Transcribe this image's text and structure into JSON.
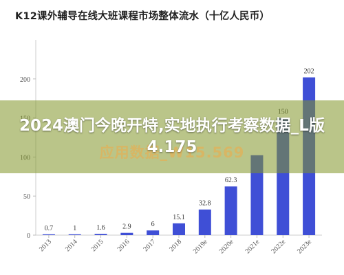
{
  "chart_data": {
    "type": "bar",
    "title": "K12课外辅导在线大班课程市场整体流水（十亿人民币）",
    "categories": [
      "2013",
      "2014",
      "2015",
      "2016",
      "2017",
      "2018",
      "2019e",
      "2020e",
      "2021e",
      "2022e",
      "2023e"
    ],
    "values": [
      0.7,
      1,
      1.6,
      2.9,
      6,
      15.1,
      32.8,
      62.3,
      102.3,
      150,
      202
    ],
    "value_labels": [
      "0.7",
      "1",
      "1.6",
      "2.9",
      "6",
      "15.1",
      "32.8",
      "62.3",
      "",
      "150",
      "202"
    ],
    "ylim": [
      0,
      250
    ],
    "yticks": [
      0,
      50,
      100,
      150,
      200
    ],
    "xlabel": "",
    "ylabel": "",
    "grid": false,
    "bar_color": "#3f4fd6"
  },
  "overlay": {
    "headline": "2024澳门今晚开特,实地执行考察数据_L版4.175",
    "faint_text": "应用数据_W15.569"
  }
}
